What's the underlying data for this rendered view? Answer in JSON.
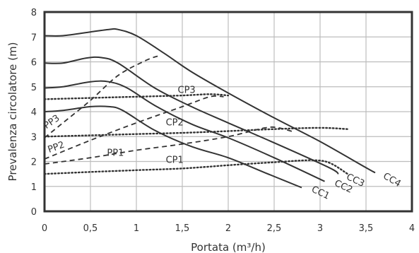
{
  "chart_data": {
    "type": "line",
    "title": "",
    "xlabel": "Portata (m³/h)",
    "ylabel": "Prevalenza circolatore (m)",
    "xlim": [
      0,
      4
    ],
    "ylim": [
      0,
      8
    ],
    "grid": true,
    "x_ticks": [
      "0",
      "0,5",
      "1",
      "1,5",
      "2",
      "2,5",
      "3",
      "3,5",
      "4"
    ],
    "y_ticks": [
      "0",
      "1",
      "2",
      "3",
      "4",
      "5",
      "6",
      "7",
      "8"
    ],
    "colors": {
      "curve": "#333333",
      "grid": "#bdbdbd",
      "frame": "#333333"
    },
    "series": [
      {
        "name": "CC1",
        "style": "solid",
        "points": [
          [
            0,
            4.0
          ],
          [
            0.2,
            4.05
          ],
          [
            0.5,
            4.2
          ],
          [
            0.7,
            4.2
          ],
          [
            0.85,
            4.05
          ],
          [
            1.2,
            3.25
          ],
          [
            1.6,
            2.6
          ],
          [
            2.0,
            2.15
          ],
          [
            2.4,
            1.55
          ],
          [
            2.8,
            0.95
          ]
        ]
      },
      {
        "name": "CC2",
        "style": "solid",
        "points": [
          [
            0,
            4.95
          ],
          [
            0.2,
            5.0
          ],
          [
            0.5,
            5.2
          ],
          [
            0.7,
            5.2
          ],
          [
            0.9,
            4.95
          ],
          [
            1.2,
            4.25
          ],
          [
            1.6,
            3.5
          ],
          [
            2.0,
            2.95
          ],
          [
            2.5,
            2.15
          ],
          [
            3.05,
            1.2
          ]
        ]
      },
      {
        "name": "CC3",
        "style": "solid",
        "points": [
          [
            0,
            5.95
          ],
          [
            0.2,
            5.95
          ],
          [
            0.45,
            6.15
          ],
          [
            0.62,
            6.17
          ],
          [
            0.8,
            5.95
          ],
          [
            1.2,
            4.95
          ],
          [
            1.6,
            4.2
          ],
          [
            2.0,
            3.55
          ],
          [
            2.5,
            2.75
          ],
          [
            3.1,
            1.75
          ],
          [
            3.2,
            1.5
          ]
        ]
      },
      {
        "name": "CC4",
        "style": "solid",
        "points": [
          [
            0,
            7.05
          ],
          [
            0.2,
            7.05
          ],
          [
            0.5,
            7.2
          ],
          [
            0.7,
            7.3
          ],
          [
            0.8,
            7.3
          ],
          [
            1.0,
            7.05
          ],
          [
            1.3,
            6.35
          ],
          [
            1.6,
            5.6
          ],
          [
            2.0,
            4.75
          ],
          [
            2.5,
            3.75
          ],
          [
            3.0,
            2.8
          ],
          [
            3.5,
            1.75
          ],
          [
            3.6,
            1.55
          ]
        ]
      },
      {
        "name": "PP1",
        "style": "dashed",
        "points": [
          [
            0,
            1.9
          ],
          [
            0.5,
            2.15
          ],
          [
            1.0,
            2.45
          ],
          [
            1.5,
            2.7
          ],
          [
            2.0,
            3.0
          ],
          [
            2.4,
            3.35
          ],
          [
            2.55,
            3.35
          ],
          [
            2.7,
            3.2
          ]
        ]
      },
      {
        "name": "PP2",
        "style": "dashed",
        "points": [
          [
            0,
            2.1
          ],
          [
            0.5,
            2.85
          ],
          [
            1.0,
            3.55
          ],
          [
            1.5,
            4.2
          ],
          [
            1.8,
            4.6
          ],
          [
            1.95,
            4.6
          ]
        ]
      },
      {
        "name": "PP3",
        "style": "dashed",
        "points": [
          [
            0,
            2.95
          ],
          [
            0.2,
            3.55
          ],
          [
            0.5,
            4.45
          ],
          [
            0.8,
            5.45
          ],
          [
            1.1,
            6.05
          ],
          [
            1.25,
            6.25
          ]
        ]
      },
      {
        "name": "CP1",
        "style": "dotted",
        "points": [
          [
            0,
            1.5
          ],
          [
            0.5,
            1.58
          ],
          [
            1.0,
            1.65
          ],
          [
            1.5,
            1.72
          ],
          [
            2.0,
            1.85
          ],
          [
            2.5,
            1.97
          ],
          [
            2.9,
            2.05
          ],
          [
            3.1,
            1.95
          ],
          [
            3.3,
            1.5
          ]
        ]
      },
      {
        "name": "CP2",
        "style": "dotted",
        "points": [
          [
            0,
            3.0
          ],
          [
            0.5,
            3.05
          ],
          [
            1.0,
            3.1
          ],
          [
            1.5,
            3.15
          ],
          [
            2.0,
            3.22
          ],
          [
            2.5,
            3.3
          ],
          [
            3.0,
            3.35
          ],
          [
            3.3,
            3.3
          ]
        ]
      },
      {
        "name": "CP3",
        "style": "dotted",
        "points": [
          [
            0,
            4.5
          ],
          [
            0.5,
            4.55
          ],
          [
            1.0,
            4.6
          ],
          [
            1.5,
            4.65
          ],
          [
            1.8,
            4.7
          ],
          [
            2.0,
            4.65
          ]
        ]
      }
    ],
    "curve_labels": [
      {
        "text": "CC1",
        "at": [
          2.9,
          0.8
        ],
        "rotate": 25
      },
      {
        "text": "CC2",
        "at": [
          3.15,
          1.05
        ],
        "rotate": 25
      },
      {
        "text": "CC3",
        "at": [
          3.28,
          1.3
        ],
        "rotate": 25
      },
      {
        "text": "CC4",
        "at": [
          3.68,
          1.35
        ],
        "rotate": 30
      },
      {
        "text": "PP1",
        "at": [
          0.68,
          2.22
        ],
        "rotate": 0
      },
      {
        "text": "PP2",
        "at": [
          0.05,
          2.35
        ],
        "rotate": -20
      },
      {
        "text": "PP3",
        "at": [
          0.02,
          3.3
        ],
        "rotate": -35
      },
      {
        "text": "CP1",
        "at": [
          1.32,
          1.95
        ],
        "rotate": 0
      },
      {
        "text": "CP2",
        "at": [
          1.32,
          3.45
        ],
        "rotate": 0
      },
      {
        "text": "CP3",
        "at": [
          1.45,
          4.75
        ],
        "rotate": 0
      }
    ]
  }
}
